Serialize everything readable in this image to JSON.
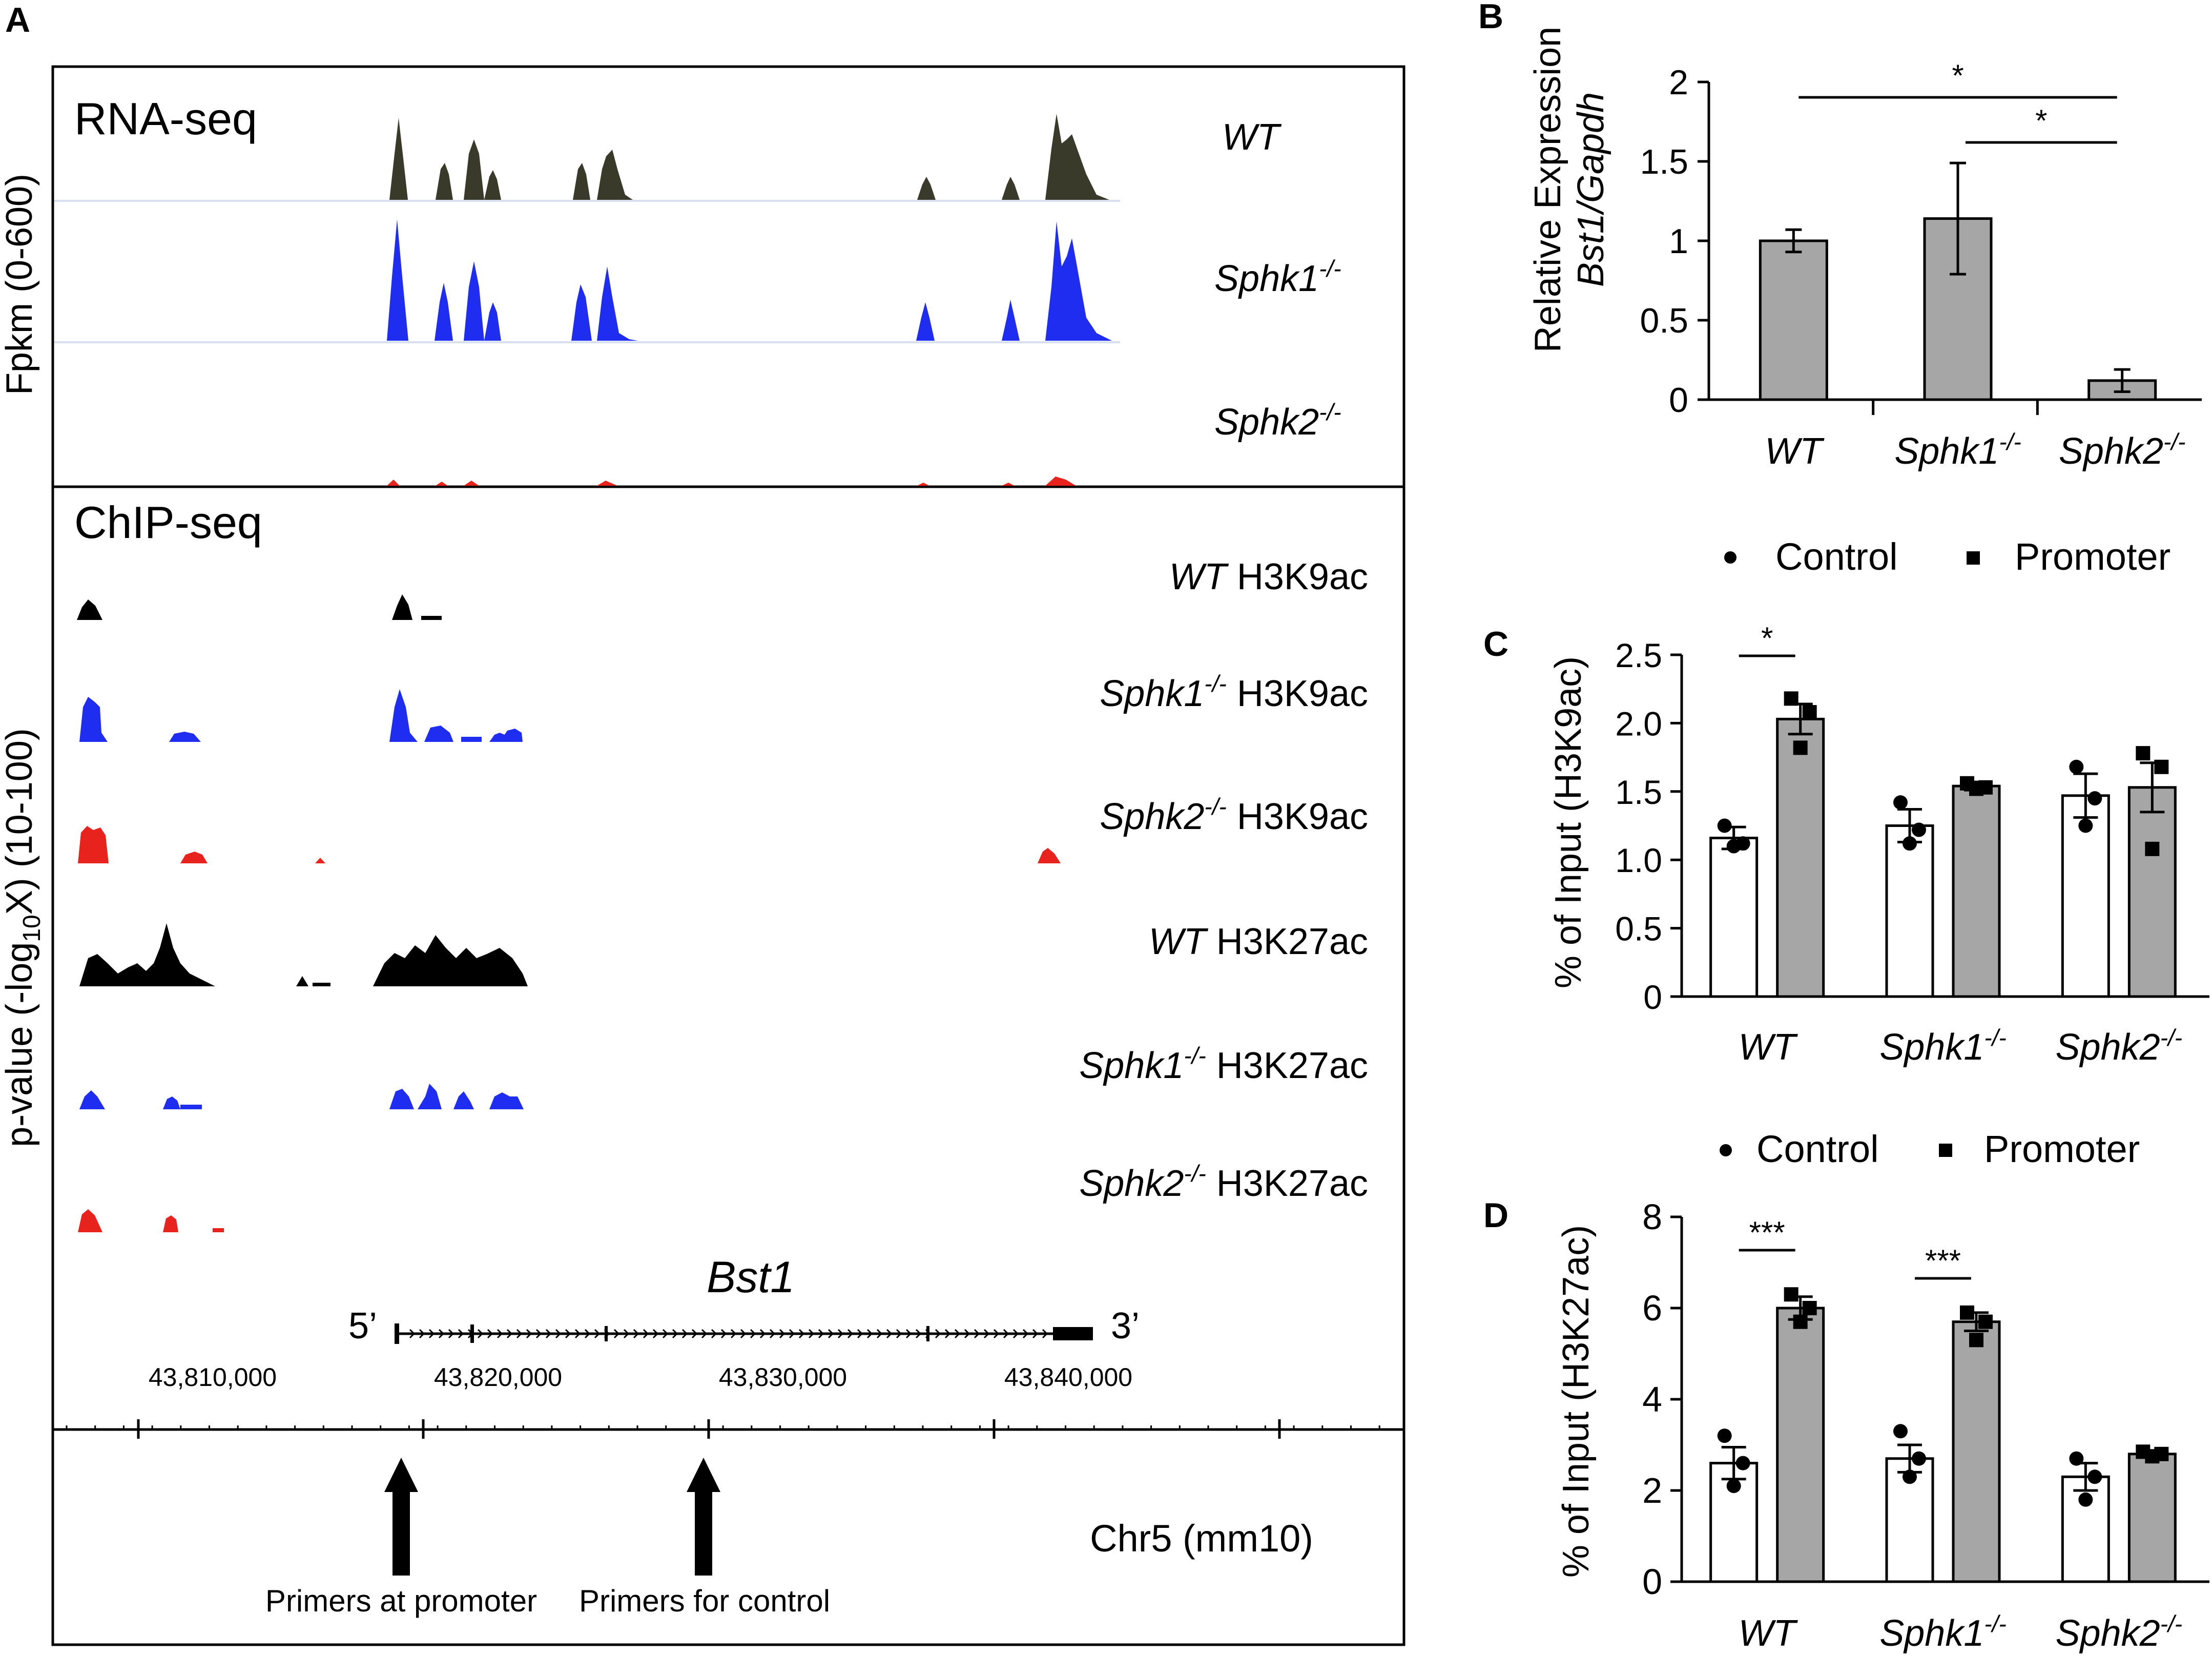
{
  "panel_letters": {
    "a": "A",
    "b": "B",
    "c": "C",
    "d": "D"
  },
  "colors": {
    "wt_rna": "#3a3a2a",
    "wt": "#000000",
    "sphk1": "#1f2df0",
    "sphk2": "#e8231d",
    "bar_grey": "#a6a6a6",
    "bar_white": "#ffffff"
  },
  "panel_a": {
    "rna_title": "RNA-seq",
    "fpkm_label": "Fpkm (0-600)",
    "chip_title": "ChIP-seq",
    "pvalue_label_main": "p-value (-log",
    "pvalue_label_sub": "10",
    "pvalue_label_tail": "X) (10-100)",
    "rna_tracks": [
      {
        "genotype": "WT",
        "sup": ""
      },
      {
        "genotype": "Sphk1",
        "sup": "-/-"
      },
      {
        "genotype": "Sphk2",
        "sup": "-/-"
      }
    ],
    "chip_tracks": [
      {
        "genotype": "WT",
        "sup": "",
        "mark": " H3K9ac"
      },
      {
        "genotype": "Sphk1",
        "sup": "-/-",
        "mark": " H3K9ac"
      },
      {
        "genotype": "Sphk2",
        "sup": "-/-",
        "mark": " H3K9ac"
      },
      {
        "genotype": "WT",
        "sup": "",
        "mark": " H3K27ac"
      },
      {
        "genotype": "Sphk1",
        "sup": "-/-",
        "mark": " H3K27ac"
      },
      {
        "genotype": "Sphk2",
        "sup": "-/-",
        "mark": " H3K27ac"
      }
    ],
    "gene_name": "Bst1",
    "five_prime": "5’",
    "three_prime": "3’",
    "coordinates": [
      "43,810,000",
      "43,820,000",
      "43,830,000",
      "43,840,000"
    ],
    "primer_promoter": "Primers at promoter",
    "primer_control": "Primers for control",
    "chromosome": "Chr5 (mm10)"
  },
  "chart_data": [
    {
      "panel": "B",
      "type": "bar",
      "ylabel_line1": "Relative Expression",
      "ylabel_line2": "Bst1/Gapdh",
      "categories": [
        {
          "name": "WT",
          "sup": ""
        },
        {
          "name": "Sphk1",
          "sup": "-/-"
        },
        {
          "name": "Sphk2",
          "sup": "-/-"
        }
      ],
      "values": [
        1.0,
        1.14,
        0.12
      ],
      "errors": [
        0.07,
        0.35,
        0.07
      ],
      "ylim": [
        0,
        2
      ],
      "yticks": [
        "0",
        "0.5",
        "1",
        "1.5",
        "2"
      ],
      "significance": [
        {
          "from": 0,
          "to": 2,
          "label": "*"
        },
        {
          "from": 1,
          "to": 2,
          "label": "*"
        }
      ]
    },
    {
      "panel": "C",
      "type": "bar",
      "ylabel": "% of Input (H3K9ac)",
      "legend": [
        "Control",
        "Promoter"
      ],
      "categories": [
        {
          "name": "WT",
          "sup": ""
        },
        {
          "name": "Sphk1",
          "sup": "-/-"
        },
        {
          "name": "Sphk2",
          "sup": "-/-"
        }
      ],
      "series": [
        {
          "name": "Control",
          "values": [
            1.16,
            1.25,
            1.47
          ],
          "errors": [
            0.08,
            0.12,
            0.16
          ],
          "points": [
            [
              1.1,
              1.12,
              1.25
            ],
            [
              1.12,
              1.22,
              1.42
            ],
            [
              1.25,
              1.45,
              1.68
            ]
          ]
        },
        {
          "name": "Promoter",
          "values": [
            2.03,
            1.54,
            1.53
          ],
          "errors": [
            0.11,
            0.03,
            0.18
          ],
          "points": [
            [
              1.82,
              2.08,
              2.18
            ],
            [
              1.52,
              1.53,
              1.56
            ],
            [
              1.08,
              1.68,
              1.78
            ]
          ]
        }
      ],
      "ylim": [
        0,
        2.5
      ],
      "yticks": [
        "0",
        "0.5",
        "1.0",
        "1.5",
        "2.0",
        "2.5"
      ],
      "significance": [
        {
          "category": 0,
          "label": "*"
        }
      ]
    },
    {
      "panel": "D",
      "type": "bar",
      "ylabel": "% of Input (H3K27ac)",
      "legend": [
        "Control",
        "Promoter"
      ],
      "categories": [
        {
          "name": "WT",
          "sup": ""
        },
        {
          "name": "Sphk1",
          "sup": "-/-"
        },
        {
          "name": "Sphk2",
          "sup": "-/-"
        }
      ],
      "series": [
        {
          "name": "Control",
          "values": [
            2.6,
            2.7,
            2.3
          ],
          "errors": [
            0.35,
            0.3,
            0.3
          ],
          "points": [
            [
              2.1,
              2.6,
              3.2
            ],
            [
              2.3,
              2.7,
              3.3
            ],
            [
              1.8,
              2.3,
              2.7
            ]
          ]
        },
        {
          "name": "Promoter",
          "values": [
            6.0,
            5.7,
            2.8
          ],
          "errors": [
            0.25,
            0.2,
            0.05
          ],
          "points": [
            [
              5.7,
              6.0,
              6.3
            ],
            [
              5.3,
              5.7,
              5.9
            ],
            [
              2.75,
              2.8,
              2.85
            ]
          ]
        }
      ],
      "ylim": [
        0,
        8
      ],
      "yticks": [
        "0",
        "2",
        "4",
        "6",
        "8"
      ],
      "significance": [
        {
          "category": 0,
          "label": "***"
        },
        {
          "category": 1,
          "label": "***"
        }
      ]
    }
  ]
}
